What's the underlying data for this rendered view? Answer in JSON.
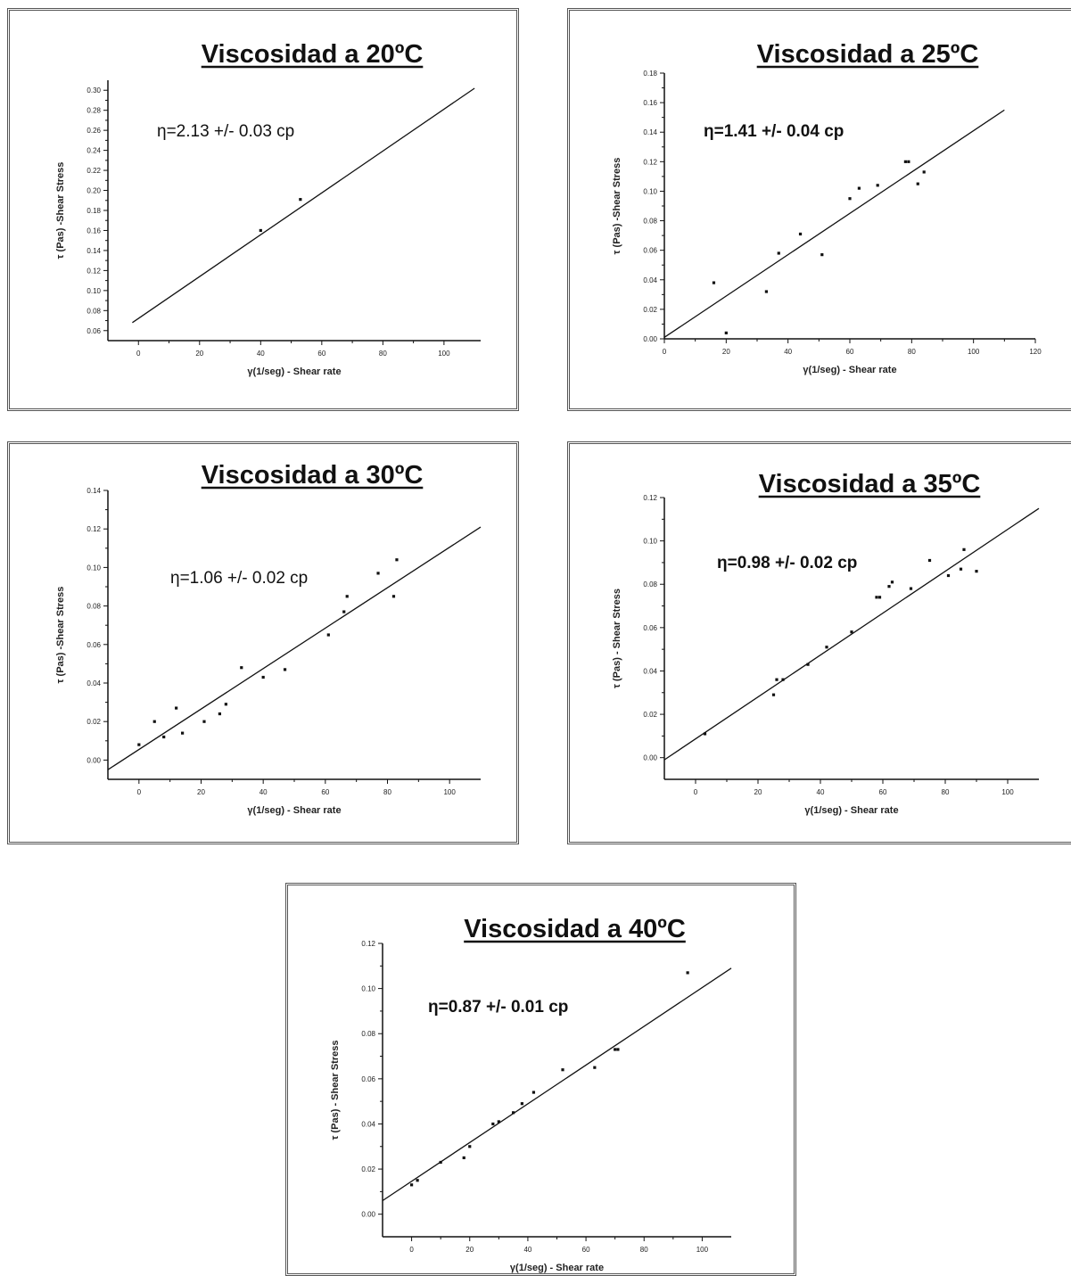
{
  "chart_data": [
    {
      "type": "scatter",
      "title": "Viscosidad a 20ºC",
      "annotation": "η=2.13 +/- 0.03 cp",
      "xlabel": "γ(1/seg) - Shear rate",
      "ylabel": "τ (Pas) -Shear Stress",
      "xlim": [
        -10,
        112
      ],
      "ylim": [
        0.05,
        0.31
      ],
      "xticks": [
        "0",
        "20",
        "40",
        "60",
        "80",
        "100"
      ],
      "yticks": [
        "0.06",
        "0.08",
        "0.10",
        "0.12",
        "0.14",
        "0.16",
        "0.18",
        "0.20",
        "0.22",
        "0.24",
        "0.26",
        "0.28",
        "0.30"
      ],
      "x": [
        40,
        53
      ],
      "y": [
        0.16,
        0.191
      ],
      "fit": {
        "x": [
          -2,
          110
        ],
        "y": [
          0.068,
          0.302
        ]
      }
    },
    {
      "type": "scatter",
      "title": "Viscosidad a 25ºC",
      "annotation": "η=1.41 +/- 0.04 cp",
      "xlabel": "γ(1/seg) - Shear rate",
      "ylabel": "τ (Pas) -Shear Stress",
      "xlim": [
        0,
        120
      ],
      "ylim": [
        0.0,
        0.18
      ],
      "xticks": [
        "0",
        "20",
        "40",
        "60",
        "80",
        "100",
        "120"
      ],
      "yticks": [
        "0.00",
        "0.02",
        "0.04",
        "0.06",
        "0.08",
        "0.10",
        "0.12",
        "0.14",
        "0.16",
        "0.18"
      ],
      "x": [
        16,
        20,
        33,
        37,
        44,
        51,
        60,
        63,
        69,
        78,
        79,
        82,
        84
      ],
      "y": [
        0.038,
        0.004,
        0.032,
        0.058,
        0.071,
        0.057,
        0.095,
        0.102,
        0.104,
        0.12,
        0.12,
        0.105,
        0.113
      ],
      "fit": {
        "x": [
          0,
          110
        ],
        "y": [
          0.001,
          0.155
        ]
      }
    },
    {
      "type": "scatter",
      "title": "Viscosidad a 30ºC",
      "annotation": "η=1.06 +/- 0.02 cp",
      "xlabel": "γ(1/seg) - Shear rate",
      "ylabel": "τ (Pas) -Shear Stress",
      "xlim": [
        -10,
        110
      ],
      "ylim": [
        -0.01,
        0.14
      ],
      "xticks": [
        "0",
        "20",
        "40",
        "60",
        "80",
        "100"
      ],
      "yticks": [
        "0.00",
        "0.02",
        "0.04",
        "0.06",
        "0.08",
        "0.10",
        "0.12",
        "0.14"
      ],
      "x": [
        0,
        5,
        8,
        12,
        14,
        21,
        26,
        28,
        33,
        40,
        47,
        61,
        66,
        67,
        77,
        82,
        83
      ],
      "y": [
        0.008,
        0.02,
        0.012,
        0.027,
        0.014,
        0.02,
        0.024,
        0.029,
        0.048,
        0.043,
        0.047,
        0.065,
        0.077,
        0.085,
        0.097,
        0.085,
        0.104
      ],
      "fit": {
        "x": [
          -10,
          110
        ],
        "y": [
          -0.005,
          0.121
        ]
      }
    },
    {
      "type": "scatter",
      "title": "Viscosidad a 35ºC",
      "annotation": "η=0.98 +/- 0.02 cp",
      "xlabel": "γ(1/seg) - Shear rate",
      "ylabel": "τ (Pas) - Shear Stress",
      "xlim": [
        -10,
        110
      ],
      "ylim": [
        -0.01,
        0.12
      ],
      "xticks": [
        "0",
        "20",
        "40",
        "60",
        "80",
        "100"
      ],
      "yticks": [
        "0.00",
        "0.02",
        "0.04",
        "0.06",
        "0.08",
        "0.10",
        "0.12"
      ],
      "x": [
        3,
        25,
        26,
        28,
        36,
        42,
        50,
        58,
        59,
        62,
        63,
        69,
        75,
        81,
        85,
        86,
        90
      ],
      "y": [
        0.011,
        0.029,
        0.036,
        0.036,
        0.043,
        0.051,
        0.058,
        0.074,
        0.074,
        0.079,
        0.081,
        0.078,
        0.091,
        0.084,
        0.087,
        0.096,
        0.086
      ],
      "fit": {
        "x": [
          -10,
          110
        ],
        "y": [
          -0.001,
          0.115
        ]
      }
    },
    {
      "type": "scatter",
      "title": "Viscosidad a 40ºC",
      "annotation": "η=0.87 +/- 0.01 cp",
      "xlabel": "γ(1/seg) - Shear rate",
      "ylabel": "τ (Pas) - Shear Stress",
      "xlim": [
        -10,
        110
      ],
      "ylim": [
        -0.01,
        0.12
      ],
      "xticks": [
        "0",
        "20",
        "40",
        "60",
        "80",
        "100"
      ],
      "yticks": [
        "0.00",
        "0.02",
        "0.04",
        "0.06",
        "0.08",
        "0.10",
        "0.12"
      ],
      "x": [
        0,
        2,
        10,
        18,
        20,
        28,
        30,
        35,
        38,
        42,
        52,
        63,
        70,
        71,
        95
      ],
      "y": [
        0.013,
        0.015,
        0.023,
        0.025,
        0.03,
        0.04,
        0.041,
        0.045,
        0.049,
        0.054,
        0.064,
        0.065,
        0.073,
        0.073,
        0.107
      ],
      "fit": {
        "x": [
          -10,
          110
        ],
        "y": [
          0.006,
          0.109
        ]
      }
    }
  ]
}
